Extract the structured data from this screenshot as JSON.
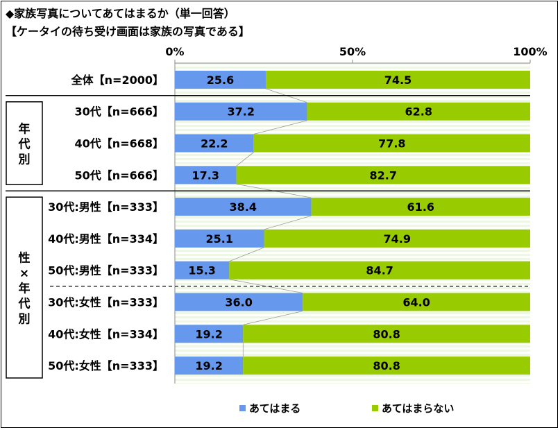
{
  "chart_data": {
    "type": "bar",
    "orientation": "horizontal",
    "stacked": true,
    "percent": true,
    "title": "◆家族写真についてあてはまるか（単一回答）",
    "subtitle": "【ケータイの待ち受け画面は家族の写真である】",
    "xlim": [
      0,
      100
    ],
    "ticks": [
      "0%",
      "50%",
      "100%"
    ],
    "categories": [
      "全体【n=2000】",
      "30代【n=666】",
      "40代【n=668】",
      "50代【n=666】",
      "30代:男性【n=333】",
      "40代:男性【n=334】",
      "50代:男性【n=333】",
      "30代:女性【n=333】",
      "40代:女性【n=334】",
      "50代:女性【n=333】"
    ],
    "series": [
      {
        "name": "あてはまる",
        "color": "#6699ee",
        "values": [
          25.6,
          37.2,
          22.2,
          17.3,
          38.4,
          25.1,
          15.3,
          36.0,
          19.2,
          19.2
        ]
      },
      {
        "name": "あてはまらない",
        "color": "#99cc00",
        "values": [
          74.5,
          62.8,
          77.8,
          82.7,
          61.6,
          74.9,
          84.7,
          64.0,
          80.8,
          80.8
        ]
      }
    ],
    "groups": [
      {
        "label": "年\n代\n別"
      },
      {
        "label": "性\n×\n年\n代\n別"
      }
    ],
    "legend_position": "bottom"
  }
}
